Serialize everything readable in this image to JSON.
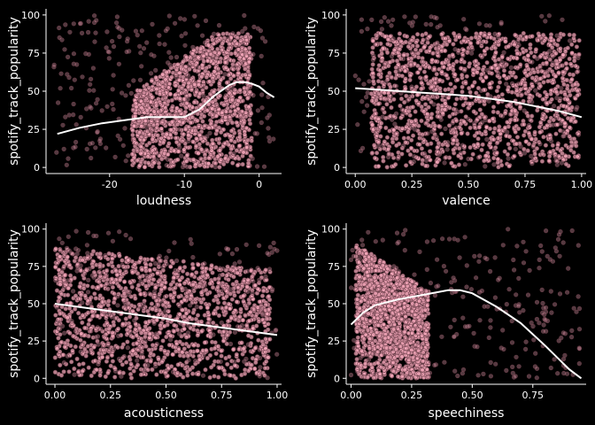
{
  "style": {
    "background": "#000000",
    "point_fill": "#F4A7B9",
    "point_stroke": "#6b3f4a",
    "axis_color": "#ffffff",
    "smooth_color": "#ffffff"
  },
  "chart_data": [
    {
      "type": "scatter",
      "panel": "top-left",
      "xlabel": "loudness",
      "ylabel": "spotify_track_popularity",
      "xlim": [
        -28.5,
        3
      ],
      "ylim": [
        0,
        100
      ],
      "xticks": [
        -20,
        -10,
        0
      ],
      "xtick_labels": [
        "-20",
        "-10",
        "0"
      ],
      "yticks": [
        0,
        25,
        50,
        75,
        100
      ],
      "ytick_labels": [
        "0",
        "25",
        "50",
        "75",
        "100"
      ],
      "grid": false,
      "cloud": {
        "xmin": -17,
        "xmax": -1,
        "ymin": 0,
        "ymax": 88,
        "profile": "rising"
      },
      "sparse": {
        "xmin": -27.5,
        "xmax": 2,
        "ymin": 0,
        "ymax": 100
      },
      "smooth": {
        "x": [
          -27,
          -24,
          -21,
          -18,
          -15,
          -12,
          -10,
          -8,
          -6,
          -4,
          -3,
          -2,
          -1,
          0,
          1,
          2
        ],
        "y": [
          22,
          26,
          29,
          31,
          33,
          33,
          33,
          38,
          47,
          54,
          56,
          56,
          55,
          53,
          49,
          46
        ]
      }
    },
    {
      "type": "scatter",
      "panel": "top-right",
      "xlabel": "valence",
      "ylabel": "spotify_track_popularity",
      "xlim": [
        -0.04,
        1.02
      ],
      "ylim": [
        0,
        100
      ],
      "xticks": [
        0,
        0.25,
        0.5,
        0.75,
        1
      ],
      "xtick_labels": [
        "0.00",
        "0.25",
        "0.50",
        "0.75",
        "1.00"
      ],
      "yticks": [
        0,
        25,
        50,
        75,
        100
      ],
      "ytick_labels": [
        "0",
        "25",
        "50",
        "75",
        "100"
      ],
      "grid": false,
      "cloud": {
        "xmin": 0.07,
        "xmax": 0.99,
        "ymin": 0,
        "ymax": 88,
        "profile": "flat"
      },
      "sparse": {
        "xmin": 0.0,
        "xmax": 1.0,
        "ymin": 0,
        "ymax": 100
      },
      "smooth": {
        "x": [
          0,
          0.1,
          0.2,
          0.3,
          0.4,
          0.5,
          0.6,
          0.7,
          0.8,
          0.9,
          1.0
        ],
        "y": [
          52,
          51,
          50,
          49,
          48,
          47,
          45,
          43,
          40,
          37,
          33
        ]
      }
    },
    {
      "type": "scatter",
      "panel": "bottom-left",
      "xlabel": "acousticness",
      "ylabel": "spotify_track_popularity",
      "xlim": [
        -0.04,
        1.02
      ],
      "ylim": [
        0,
        100
      ],
      "xticks": [
        0,
        0.25,
        0.5,
        0.75,
        1
      ],
      "xtick_labels": [
        "0.00",
        "0.25",
        "0.50",
        "0.75",
        "1.00"
      ],
      "yticks": [
        0,
        25,
        50,
        75,
        100
      ],
      "ytick_labels": [
        "0",
        "25",
        "50",
        "75",
        "100"
      ],
      "grid": false,
      "cloud": {
        "xmin": 0.0,
        "xmax": 0.97,
        "ymin": 0,
        "ymax": 88,
        "profile": "falling"
      },
      "sparse": {
        "xmin": 0.0,
        "xmax": 1.0,
        "ymin": 0,
        "ymax": 100
      },
      "smooth": {
        "x": [
          0,
          0.1,
          0.2,
          0.3,
          0.4,
          0.5,
          0.6,
          0.7,
          0.8,
          0.9,
          1.0
        ],
        "y": [
          50,
          48,
          46,
          44,
          42,
          40,
          37,
          35,
          33,
          31,
          29
        ]
      }
    },
    {
      "type": "scatter",
      "panel": "bottom-right",
      "xlabel": "speechiness",
      "ylabel": "spotify_track_popularity",
      "xlim": [
        -0.02,
        0.97
      ],
      "ylim": [
        0,
        100
      ],
      "xticks": [
        0,
        0.25,
        0.5,
        0.75
      ],
      "xtick_labels": [
        "0.00",
        "0.25",
        "0.50",
        "0.75"
      ],
      "yticks": [
        0,
        25,
        50,
        75,
        100
      ],
      "ytick_labels": [
        "0",
        "25",
        "50",
        "75",
        "100"
      ],
      "grid": false,
      "cloud": {
        "xmin": 0.02,
        "xmax": 0.32,
        "ymin": 0,
        "ymax": 90,
        "profile": "left-dense"
      },
      "sparse": {
        "xmin": 0.0,
        "xmax": 0.95,
        "ymin": 0,
        "ymax": 100
      },
      "smooth": {
        "x": [
          0,
          0.05,
          0.1,
          0.2,
          0.3,
          0.4,
          0.45,
          0.5,
          0.6,
          0.7,
          0.8,
          0.9,
          0.95
        ],
        "y": [
          36,
          44,
          49,
          53,
          56,
          59,
          59,
          57,
          48,
          37,
          22,
          6,
          0
        ]
      }
    }
  ]
}
